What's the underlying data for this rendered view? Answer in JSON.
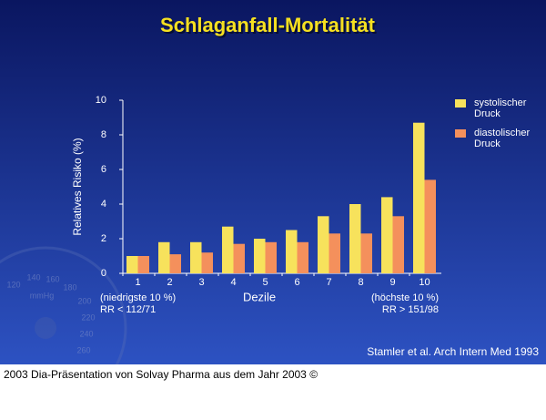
{
  "chart_data": {
    "type": "bar",
    "title": "Schlaganfall-Mortalität",
    "y_label": "Relatives Risiko (%)",
    "x_label": "Dezile",
    "categories": [
      "1",
      "2",
      "3",
      "4",
      "5",
      "6",
      "7",
      "8",
      "9",
      "10"
    ],
    "series": [
      {
        "name": "systolischer Druck",
        "color": "#f7e25c",
        "values": [
          1.0,
          1.8,
          1.8,
          2.7,
          2.0,
          2.5,
          3.3,
          4.0,
          4.4,
          8.7
        ]
      },
      {
        "name": "diastolischer Druck",
        "color": "#f4905c",
        "values": [
          1.0,
          1.1,
          1.2,
          1.7,
          1.8,
          1.8,
          2.3,
          2.3,
          3.3,
          5.4
        ]
      }
    ],
    "ylim": [
      0,
      10
    ],
    "yticks": [
      0,
      2,
      4,
      6,
      8,
      10
    ],
    "grid": false,
    "legend": "right",
    "annotations": [
      "(niedrigste 10 %)",
      "RR < 112/71",
      "(höchste 10 %)",
      "RR > 151/98"
    ],
    "source": "Stamler et al. Arch Intern Med 1993"
  },
  "background": {
    "gauge_labels": [
      "120",
      "140",
      "160",
      "180",
      "mmHg",
      "200",
      "220",
      "240",
      "260"
    ]
  },
  "footer": "2003 Dia-Präsentation von Solvay Pharma aus dem Jahr 2003 ©"
}
